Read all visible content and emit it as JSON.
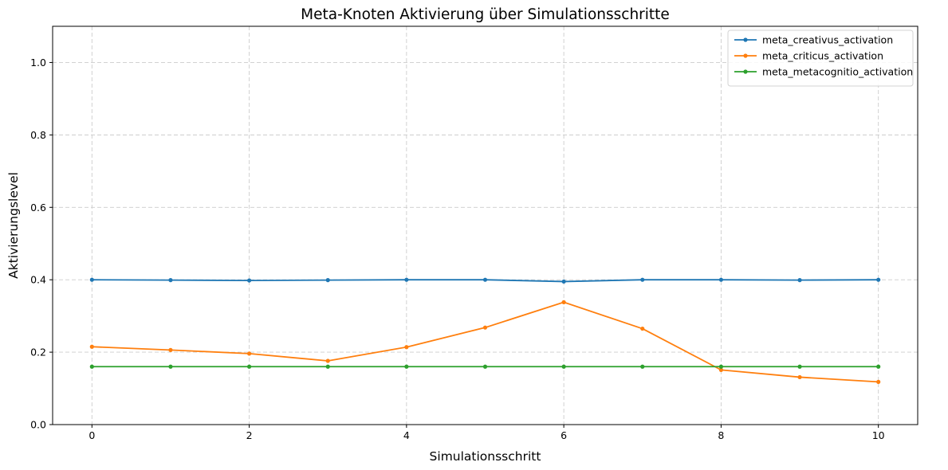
{
  "chart_data": {
    "type": "line",
    "title": "Meta-Knoten Aktivierung über Simulationsschritte",
    "xlabel": "Simulationsschritt",
    "ylabel": "Aktivierungslevel",
    "x": [
      0,
      1,
      2,
      3,
      4,
      5,
      6,
      7,
      8,
      9,
      10
    ],
    "xlim": [
      -0.5,
      10.5
    ],
    "ylim": [
      0.0,
      1.1
    ],
    "x_ticks": [
      "0",
      "2",
      "4",
      "6",
      "8",
      "10"
    ],
    "y_ticks": [
      "0.0",
      "0.2",
      "0.4",
      "0.6",
      "0.8",
      "1.0"
    ],
    "grid": true,
    "grid_style": "dashed",
    "legend_position": "top-right",
    "markers": true,
    "series": [
      {
        "name": "meta_creativus_activation",
        "color": "#1f77b4",
        "values": [
          0.4,
          0.399,
          0.398,
          0.399,
          0.4,
          0.4,
          0.395,
          0.4,
          0.4,
          0.399,
          0.4
        ]
      },
      {
        "name": "meta_criticus_activation",
        "color": "#ff7f0e",
        "values": [
          0.215,
          0.206,
          0.196,
          0.176,
          0.214,
          0.268,
          0.338,
          0.265,
          0.151,
          0.131,
          0.118
        ]
      },
      {
        "name": "meta_metacognitio_activation",
        "color": "#2ca02c",
        "values": [
          0.16,
          0.16,
          0.16,
          0.16,
          0.16,
          0.16,
          0.16,
          0.16,
          0.16,
          0.16,
          0.16
        ]
      }
    ]
  }
}
